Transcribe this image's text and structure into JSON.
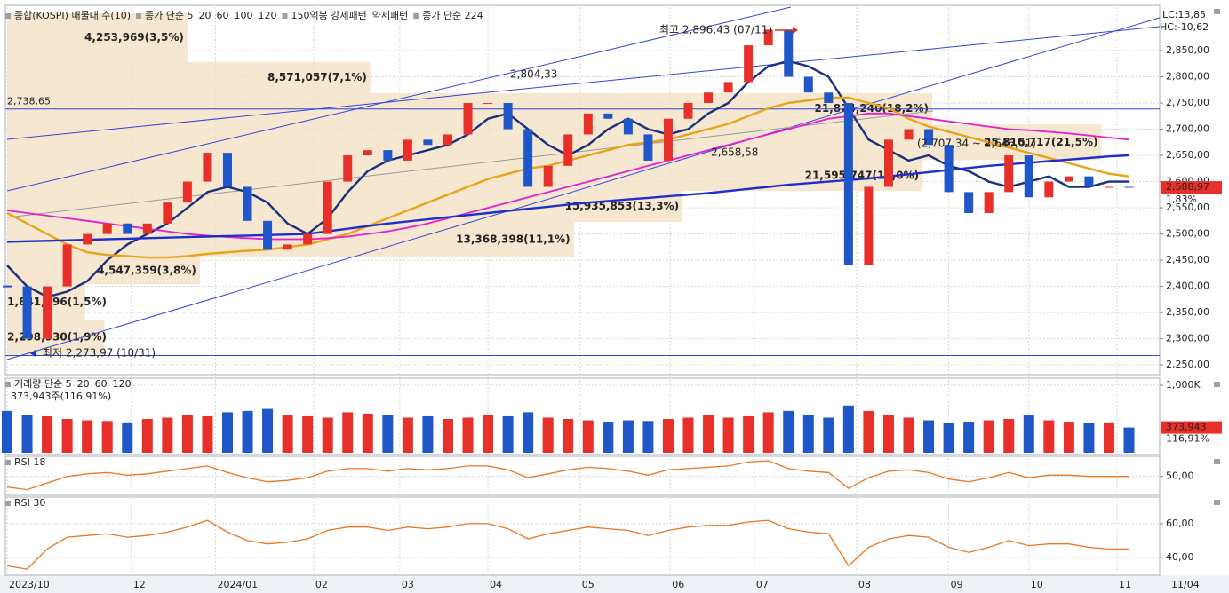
{
  "chart_data": [
    {
      "type": "candlestick",
      "legend_items": [
        {
          "text": "종합(KOSPI) 매물대 수(10)",
          "color": "#333333"
        },
        {
          "text": "종가 단순 5",
          "color": "#e020c8"
        },
        {
          "text": "120",
          "color": "#888888"
        },
        {
          "text": "150억봉 강세패턴",
          "color": "#333333"
        },
        {
          "text": "약세패턴",
          "color": "#333333"
        }
      ],
      "values": [
        2400,
        2300,
        2400,
        2480,
        2500,
        2520,
        2500,
        2520,
        2560,
        2600,
        2655,
        2590,
        2525,
        2470,
        2480,
        2500,
        2600,
        2650,
        2660,
        2640,
        2680,
        2670,
        2690,
        2750,
        2750,
        2700,
        2590,
        2630,
        2690,
        2730,
        2720,
        2690,
        2640,
        2720,
        2750,
        2770,
        2790,
        2860,
        2890,
        2800,
        2770,
        2750,
        2440,
        2590,
        2680,
        2700,
        2670,
        2580,
        2540,
        2580,
        2650,
        2570,
        2600,
        2610,
        2590,
        2590,
        2588.97
      ],
      "up_color": "#e8302a",
      "down_color": "#1f56c8",
      "series": [
        {
          "name": "20",
          "color": "#1b2f7a",
          "values": [
            2440,
            2400,
            2380,
            2390,
            2410,
            2450,
            2480,
            2500,
            2520,
            2550,
            2580,
            2590,
            2580,
            2560,
            2520,
            2500,
            2530,
            2580,
            2620,
            2640,
            2650,
            2660,
            2670,
            2690,
            2720,
            2730,
            2700,
            2670,
            2650,
            2670,
            2700,
            2720,
            2700,
            2690,
            2700,
            2730,
            2750,
            2790,
            2820,
            2830,
            2820,
            2800,
            2740,
            2680,
            2660,
            2640,
            2650,
            2630,
            2620,
            2600,
            2590,
            2600,
            2610,
            2590,
            2590,
            2600,
            2600
          ]
        },
        {
          "name": "60",
          "color": "#e8a317",
          "values": [
            2540,
            2520,
            2500,
            2480,
            2465,
            2460,
            2458,
            2455,
            2455,
            2458,
            2462,
            2465,
            2468,
            2470,
            2475,
            2480,
            2490,
            2500,
            2515,
            2530,
            2545,
            2560,
            2575,
            2590,
            2605,
            2615,
            2625,
            2630,
            2640,
            2650,
            2660,
            2670,
            2675,
            2680,
            2690,
            2700,
            2710,
            2725,
            2740,
            2750,
            2755,
            2760,
            2760,
            2750,
            2740,
            2720,
            2705,
            2695,
            2685,
            2675,
            2665,
            2655,
            2645,
            2635,
            2625,
            2615,
            2610
          ]
        },
        {
          "name": "100",
          "color": "#e61fd0",
          "values": [
            2545,
            2540,
            2535,
            2530,
            2525,
            2520,
            2515,
            2510,
            2505,
            2500,
            2497,
            2494,
            2492,
            2490,
            2490,
            2490,
            2492,
            2495,
            2500,
            2505,
            2512,
            2520,
            2530,
            2540,
            2550,
            2560,
            2570,
            2580,
            2590,
            2600,
            2610,
            2620,
            2630,
            2640,
            2650,
            2660,
            2670,
            2680,
            2690,
            2700,
            2710,
            2720,
            2725,
            2730,
            2730,
            2725,
            2720,
            2715,
            2710,
            2705,
            2700,
            2698,
            2695,
            2692,
            2688,
            2684,
            2680
          ]
        },
        {
          "name": "종가 단순 224",
          "color": "#1e2fc8",
          "values": [
            2485,
            2486,
            2487,
            2488,
            2489,
            2490,
            2491,
            2492,
            2493,
            2494,
            2495,
            2496,
            2497,
            2498,
            2499,
            2500,
            2505,
            2510,
            2515,
            2520,
            2524,
            2528,
            2532,
            2536,
            2540,
            2544,
            2548,
            2552,
            2556,
            2560,
            2563,
            2566,
            2569,
            2572,
            2575,
            2578,
            2582,
            2586,
            2590,
            2594,
            2597,
            2600,
            2603,
            2606,
            2610,
            2614,
            2618,
            2622,
            2626,
            2630,
            2633,
            2636,
            2639,
            2642,
            2645,
            2648,
            2650
          ]
        }
      ],
      "volume_profile": {
        "color": "#f2e1c4",
        "bins": [
          2269,
          2336,
          2404,
          2455,
          2523,
          2582,
          2641,
          2709,
          2769,
          2828,
          2921
        ],
        "values": [
          2298930,
          1841096,
          4547359,
          13368398,
          15935853,
          21595747,
          25816717,
          21824240,
          8571057,
          4253969
        ],
        "value_labels": [
          "2,298,930(1,9%)",
          "1,841,096(1,5%)",
          "4,547,359(3,8%)",
          "13,368,398(11,1%)",
          "15,935,853(13,3%)",
          "21,595,747(18,0%)",
          "25,816,717(21,5%)",
          "21,824,240(18,2%)",
          "8,571,057(7,1%)",
          "4,253,969(3,5%)"
        ]
      },
      "hlines": [
        {
          "value": 2738.65,
          "label": "2,738,65"
        },
        {
          "value": 2268
        }
      ],
      "annotations": [
        {
          "text": "최고 2,896,43 (07/11)",
          "color": "#e0301e"
        },
        {
          "text": "최저 2,273,97 (10/31)",
          "color": "#1e2fc8"
        },
        {
          "text": "2,804,33",
          "color": "#1e2fc8"
        },
        {
          "text": "2,658,58",
          "color": "#1e2fc8"
        },
        {
          "text": "(2,707,34 ~ 2,646,01)",
          "color": "#5b4413"
        }
      ],
      "lc_label": "LC:13,85",
      "hc_label": "HC:-10,62",
      "last_price_label": "2,588,97",
      "last_change_label": "1,83%",
      "ylim": [
        2235,
        2933
      ],
      "yticks": [
        {
          "value": 2250,
          "label": "2,250,00"
        },
        {
          "value": 2300,
          "label": "2,300,00"
        },
        {
          "value": 2350,
          "label": "2,350,00"
        },
        {
          "value": 2400,
          "label": "2,400,00"
        },
        {
          "value": 2450,
          "label": "2,450,00"
        },
        {
          "value": 2500,
          "label": "2,500,00"
        },
        {
          "value": 2550,
          "label": "2,550,00"
        },
        {
          "value": 2600,
          "label": "2,600,00"
        },
        {
          "value": 2650,
          "label": "2,650,00"
        },
        {
          "value": 2700,
          "label": "2,700,00"
        },
        {
          "value": 2750,
          "label": "2,750,00"
        },
        {
          "value": 2800,
          "label": "2,800,00"
        },
        {
          "value": 2850,
          "label": "2,850,00"
        }
      ],
      "grid": true
    },
    {
      "type": "bar",
      "legend_items": [
        {
          "text": "거래량 단순 5",
          "color": "#d020c0"
        },
        {
          "text": "20",
          "color": "#e0a020"
        },
        {
          "text": "60",
          "color": "#20a040"
        },
        {
          "text": "120",
          "color": "#888888"
        }
      ],
      "subtitle": "373,943주(116,91%)",
      "values": [
        620000,
        560000,
        540000,
        500000,
        480000,
        470000,
        450000,
        500000,
        520000,
        560000,
        540000,
        600000,
        620000,
        650000,
        560000,
        540000,
        520000,
        600000,
        580000,
        560000,
        520000,
        540000,
        500000,
        520000,
        560000,
        540000,
        600000,
        520000,
        500000,
        480000,
        460000,
        480000,
        470000,
        500000,
        520000,
        560000,
        520000,
        540000,
        600000,
        620000,
        560000,
        520000,
        700000,
        620000,
        560000,
        520000,
        480000,
        440000,
        460000,
        480000,
        500000,
        560000,
        480000,
        460000,
        440000,
        450000,
        373943
      ],
      "up_color": "#e8302a",
      "down_color": "#1f56c8",
      "last_value_label": "373,943",
      "last_ratio_label": "116,91%",
      "ylim": [
        0,
        1079000
      ],
      "yticks": [
        {
          "value": 1000000,
          "label": "1,000K"
        }
      ],
      "grid": true
    },
    {
      "type": "line",
      "title": "RSI 18",
      "color": "#e87722",
      "values": [
        42,
        40,
        45,
        50,
        52,
        53,
        51,
        52,
        54,
        56,
        58,
        53,
        49,
        46,
        47,
        49,
        54,
        56,
        56,
        54,
        56,
        55,
        56,
        58,
        58,
        55,
        49,
        52,
        55,
        57,
        56,
        54,
        51,
        55,
        56,
        57,
        58,
        61,
        62,
        56,
        54,
        53,
        41,
        49,
        54,
        55,
        53,
        48,
        46,
        49,
        53,
        49,
        51,
        51,
        50,
        50,
        50
      ],
      "ylim": [
        37,
        64
      ],
      "yticks": [
        {
          "value": 50,
          "label": "50,00"
        }
      ],
      "grid": true
    },
    {
      "type": "line",
      "title": "RSI 30",
      "color": "#e87722",
      "values": [
        35,
        33,
        45,
        52,
        53,
        54,
        52,
        53,
        55,
        58,
        62,
        55,
        50,
        48,
        49,
        51,
        56,
        58,
        58,
        56,
        58,
        57,
        58,
        60,
        60,
        57,
        51,
        54,
        56,
        58,
        57,
        56,
        53,
        56,
        58,
        59,
        59,
        61,
        62,
        57,
        55,
        54,
        35,
        46,
        51,
        53,
        52,
        46,
        43,
        46,
        50,
        47,
        48,
        48,
        46,
        45,
        45
      ],
      "ylim": [
        30.5,
        74.7
      ],
      "yticks": [
        {
          "value": 40,
          "label": "40,00"
        },
        {
          "value": 60,
          "label": "60,00"
        }
      ],
      "grid": true,
      "xlim": [
        0,
        56.2
      ],
      "xticks": [
        {
          "value": 0,
          "label": "2023/10"
        },
        {
          "value": 6.2,
          "label": "12"
        },
        {
          "value": 10.4,
          "label": "2024/01"
        },
        {
          "value": 15.3,
          "label": "02"
        },
        {
          "value": 19.6,
          "label": "03"
        },
        {
          "value": 24,
          "label": "04"
        },
        {
          "value": 28.6,
          "label": "05"
        },
        {
          "value": 33.1,
          "label": "06"
        },
        {
          "value": 37.3,
          "label": "07"
        },
        {
          "value": 42.4,
          "label": "08"
        },
        {
          "value": 47,
          "label": "09"
        },
        {
          "value": 51,
          "label": "10"
        },
        {
          "value": 55.4,
          "label": "11"
        }
      ],
      "last_date_label": "11/04"
    }
  ]
}
